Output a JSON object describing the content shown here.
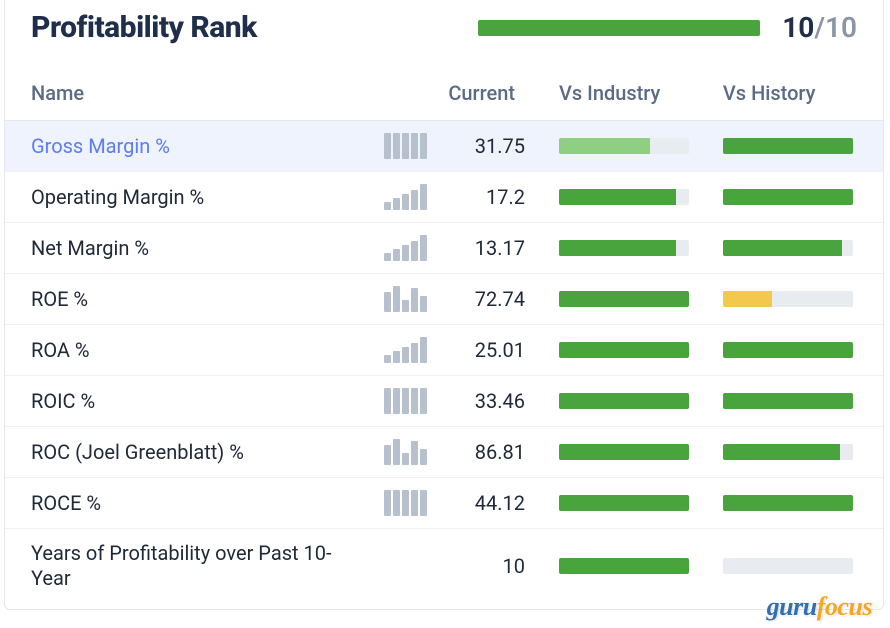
{
  "title": "Profitability Rank",
  "rank": {
    "value": 10,
    "max": 10,
    "bar_percent": 100,
    "bar_color": "#49a43d",
    "track_color": "#e8ebef"
  },
  "columns": {
    "name": "Name",
    "current": "Current",
    "vs_industry": "Vs Industry",
    "vs_history": "Vs History"
  },
  "colors": {
    "text_primary": "#1f2937",
    "text_heading": "#1f2e4a",
    "text_muted": "#5a6b84",
    "link": "#5c7cfa",
    "row_highlight_bg": "#eef3fd",
    "border": "#e5e7eb",
    "spark_bar": "#b7c0cd",
    "bar_track": "#e8ebef",
    "green": "#49a43d",
    "green_light": "#8fcf82",
    "yellow": "#f2c94c"
  },
  "spark_bar_count": 5,
  "rows": [
    {
      "name": "Gross Margin %",
      "value": "31.75",
      "highlight": true,
      "spark_heights": [
        26,
        26,
        26,
        26,
        26
      ],
      "vs_industry": {
        "percent": 70,
        "color": "#8fcf82"
      },
      "vs_history": {
        "percent": 100,
        "color": "#49a43d"
      }
    },
    {
      "name": "Operating Margin %",
      "value": "17.2",
      "highlight": false,
      "spark_heights": [
        8,
        12,
        16,
        20,
        26
      ],
      "vs_industry": {
        "percent": 90,
        "color": "#49a43d"
      },
      "vs_history": {
        "percent": 100,
        "color": "#49a43d"
      }
    },
    {
      "name": "Net Margin %",
      "value": "13.17",
      "highlight": false,
      "spark_heights": [
        8,
        12,
        16,
        20,
        26
      ],
      "vs_industry": {
        "percent": 90,
        "color": "#49a43d"
      },
      "vs_history": {
        "percent": 92,
        "color": "#49a43d"
      }
    },
    {
      "name": "ROE %",
      "value": "72.74",
      "highlight": false,
      "spark_heights": [
        20,
        26,
        12,
        24,
        16
      ],
      "vs_industry": {
        "percent": 100,
        "color": "#49a43d"
      },
      "vs_history": {
        "percent": 38,
        "color": "#f2c94c"
      }
    },
    {
      "name": "ROA %",
      "value": "25.01",
      "highlight": false,
      "spark_heights": [
        8,
        12,
        16,
        20,
        26
      ],
      "vs_industry": {
        "percent": 100,
        "color": "#49a43d"
      },
      "vs_history": {
        "percent": 100,
        "color": "#49a43d"
      }
    },
    {
      "name": "ROIC %",
      "value": "33.46",
      "highlight": false,
      "spark_heights": [
        26,
        26,
        26,
        26,
        26
      ],
      "vs_industry": {
        "percent": 100,
        "color": "#49a43d"
      },
      "vs_history": {
        "percent": 100,
        "color": "#49a43d"
      }
    },
    {
      "name": "ROC (Joel Greenblatt) %",
      "value": "86.81",
      "highlight": false,
      "spark_heights": [
        20,
        26,
        12,
        24,
        16
      ],
      "vs_industry": {
        "percent": 100,
        "color": "#49a43d"
      },
      "vs_history": {
        "percent": 90,
        "color": "#49a43d"
      }
    },
    {
      "name": "ROCE %",
      "value": "44.12",
      "highlight": false,
      "spark_heights": [
        26,
        26,
        26,
        26,
        26
      ],
      "vs_industry": {
        "percent": 100,
        "color": "#49a43d"
      },
      "vs_history": {
        "percent": 100,
        "color": "#49a43d"
      }
    },
    {
      "name": "Years of Profitability over Past 10-Year",
      "value": "10",
      "highlight": false,
      "spark_heights": [],
      "vs_industry": {
        "percent": 100,
        "color": "#49a43d"
      },
      "vs_history": {
        "percent": 0,
        "color": "#49a43d"
      }
    }
  ],
  "logo": {
    "part1": "guru",
    "part2": "focus"
  }
}
